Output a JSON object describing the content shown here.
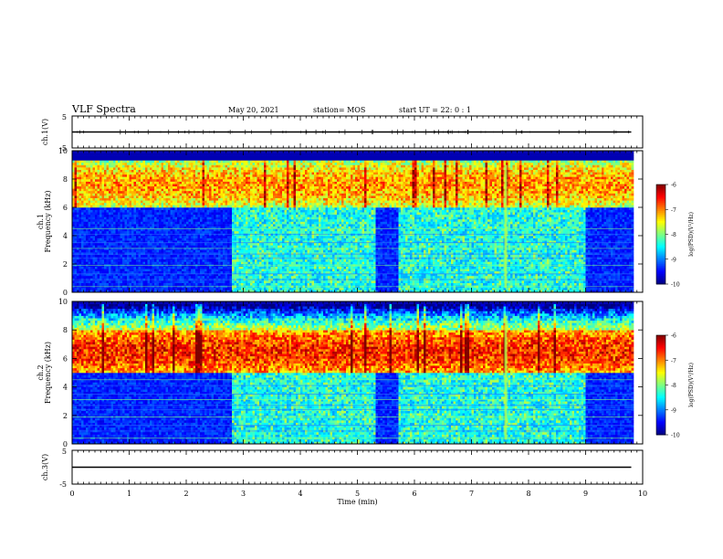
{
  "header": {
    "title": "VLF Spectra",
    "date": "May 20, 2021",
    "station": "station= MOS",
    "start": "start  UT =  22: 0  : 1"
  },
  "chart_data": [
    {
      "type": "line",
      "id": "ch1-waveform",
      "ylabel": "ch.1(V)",
      "ylim": [
        -5,
        5
      ],
      "yticks": [
        "5",
        "-5"
      ],
      "xlim": [
        0,
        10
      ],
      "series": [
        {
          "x": [
            0,
            9.8
          ],
          "values": [
            0,
            0
          ]
        }
      ]
    },
    {
      "type": "heatmap",
      "id": "ch1-spectrogram",
      "ylabel": "Frequency (kHz)",
      "channel_label": "ch.1",
      "ylim": [
        0,
        10
      ],
      "yticks": [
        "0",
        "2",
        "4",
        "6",
        "8",
        "10"
      ],
      "xlim": [
        0,
        10
      ],
      "data_end_min": 9.83,
      "colorbar": {
        "label": "log(PSD)(V²/Hz)",
        "range": [
          -10,
          -6
        ],
        "ticks": [
          "-6",
          "-7",
          "-8",
          "-9",
          "-10"
        ]
      },
      "segments": [
        {
          "from": 0.0,
          "to": 2.8,
          "quiet": true
        },
        {
          "from": 2.8,
          "to": 5.3,
          "quiet": false
        },
        {
          "from": 5.3,
          "to": 5.7,
          "quiet": true
        },
        {
          "from": 5.7,
          "to": 9.0,
          "quiet": false
        },
        {
          "from": 9.0,
          "to": 9.83,
          "quiet": true
        }
      ],
      "emission_band_khz": [
        6,
        9.2
      ]
    },
    {
      "type": "heatmap",
      "id": "ch2-spectrogram",
      "ylabel": "Frequency (kHz)",
      "channel_label": "ch.2",
      "ylim": [
        0,
        10
      ],
      "yticks": [
        "0",
        "2",
        "4",
        "6",
        "8",
        "10"
      ],
      "xlim": [
        0,
        10
      ],
      "data_end_min": 9.83,
      "colorbar": {
        "label": "log(PSD)(V²/Hz)",
        "range": [
          -10,
          -6
        ],
        "ticks": [
          "-6",
          "-7",
          "-8",
          "-9",
          "-10"
        ]
      },
      "segments": [
        {
          "from": 0.0,
          "to": 2.8,
          "quiet": true
        },
        {
          "from": 2.8,
          "to": 5.3,
          "quiet": false
        },
        {
          "from": 5.3,
          "to": 5.7,
          "quiet": true
        },
        {
          "from": 5.7,
          "to": 9.0,
          "quiet": false
        },
        {
          "from": 9.0,
          "to": 9.83,
          "quiet": true
        }
      ],
      "emission_band_khz": [
        5,
        8
      ]
    },
    {
      "type": "line",
      "id": "ch3-waveform",
      "ylabel": "ch.3(V)",
      "ylim": [
        -5,
        5
      ],
      "yticks": [
        "5",
        "-5"
      ],
      "xlim": [
        0,
        10
      ],
      "xlabel": "Time (min)",
      "xticks": [
        "0",
        "1",
        "2",
        "3",
        "4",
        "5",
        "6",
        "7",
        "8",
        "9",
        "10"
      ],
      "series": [
        {
          "x": [
            0,
            9.8
          ],
          "values": [
            0,
            0
          ]
        }
      ]
    }
  ]
}
